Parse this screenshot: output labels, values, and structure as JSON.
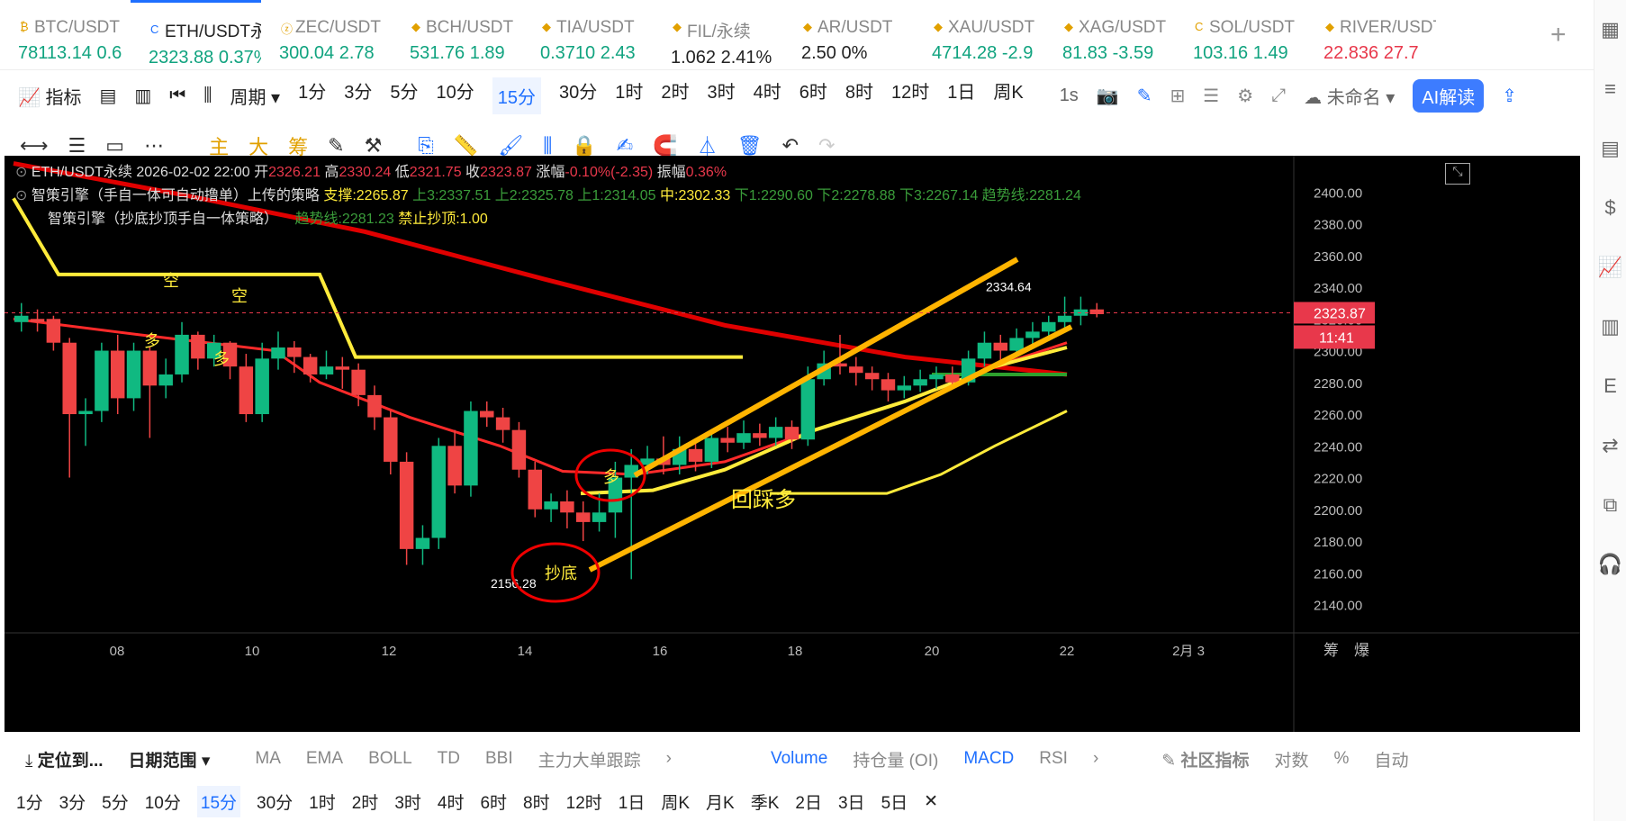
{
  "tickers": [
    {
      "symbol": "BTC/USDT",
      "price": "78113.14",
      "change": "0.6",
      "dir": "up",
      "icon": "₿"
    },
    {
      "symbol": "ETH/USDT永续",
      "price": "2323.88",
      "change": "0.37%",
      "dir": "up",
      "icon": "C",
      "active": true
    },
    {
      "symbol": "ZEC/USDT",
      "price": "300.04",
      "change": "2.78",
      "dir": "up",
      "icon": "ⓩ"
    },
    {
      "symbol": "BCH/USDT",
      "price": "531.76",
      "change": "1.89",
      "dir": "up",
      "icon": "◆"
    },
    {
      "symbol": "TIA/USDT",
      "price": "0.3710",
      "change": "2.43",
      "dir": "up",
      "icon": "◆"
    },
    {
      "symbol": "FIL/永续",
      "price": "1.062",
      "change": "2.41%",
      "dir": "neu",
      "icon": "◆"
    },
    {
      "symbol": "AR/USDT",
      "price": "2.50",
      "change": "0%",
      "dir": "neu",
      "icon": "◆"
    },
    {
      "symbol": "XAU/USDT",
      "price": "4714.28",
      "change": "-2.9",
      "dir": "up",
      "icon": "◆"
    },
    {
      "symbol": "XAG/USDT",
      "price": "81.83",
      "change": "-3.59",
      "dir": "up",
      "icon": "◆"
    },
    {
      "symbol": "SOL/USDT",
      "price": "103.16",
      "change": "1.49",
      "dir": "up",
      "icon": "C"
    },
    {
      "symbol": "RIVER/USDT",
      "price": "22.836",
      "change": "27.7",
      "dir": "dn",
      "icon": "◆"
    }
  ],
  "toolbar1": {
    "indicator": "指标",
    "period": "周期",
    "intervals": [
      "1分",
      "3分",
      "5分",
      "10分",
      "15分",
      "30分",
      "1时",
      "2时",
      "3时",
      "4时",
      "6时",
      "8时",
      "12时",
      "1日",
      "周K"
    ],
    "selected": "15分",
    "realtime": "1s",
    "unnamed": "未命名",
    "ai": "AI解读"
  },
  "toolbar2": {
    "main": "主",
    "big": "大",
    "chip": "筹"
  },
  "chart_header": {
    "line1_symbol": "ETH/USDT永续",
    "line1_time": "2026-02-02 22:00",
    "open_label": "开",
    "open": "2326.21",
    "high_label": "高",
    "high": "2330.24",
    "low_label": "低",
    "low": "2321.75",
    "close_label": "收",
    "close": "2323.87",
    "chg_label": "涨幅",
    "chg": "-0.10%(-2.35)",
    "amp_label": "振幅",
    "amp": "0.36%",
    "line2": "智策引擎（手自一体可自动撸单）上传的策略",
    "support": "支撑:2265.87",
    "up3": "上3:2337.51",
    "up2": "上2:2325.78",
    "up1": "上1:2314.05",
    "mid": "中:2302.33",
    "down1": "下1:2290.60",
    "down2": "下2:2278.88",
    "down3": "下3:2267.14",
    "trend2": "趋势线:2281.24",
    "line3": "智策引擎（抄底抄顶手自一体策略）",
    "trend3": "趋势线:2281.23",
    "forbid": "禁止抄顶:1.00"
  },
  "chart_data": {
    "type": "candlestick",
    "y_ticks": [
      "2400.00",
      "2380.00",
      "2360.00",
      "2340.00",
      "2320.00",
      "2300.00",
      "2280.00",
      "2260.00",
      "2240.00",
      "2220.00",
      "2200.00",
      "2180.00",
      "2160.00",
      "2140.00"
    ],
    "ylim": [
      2125,
      2420
    ],
    "x_ticks": [
      "08",
      "10",
      "12",
      "14",
      "16",
      "18",
      "20",
      "22",
      "2月 3"
    ],
    "last_price": "2323.87",
    "countdown": "11:41",
    "high_mark": "2334.64",
    "low_mark": "2156.28",
    "annotations": [
      "空",
      "空",
      "多",
      "多",
      "多",
      "抄底",
      "回踩多"
    ],
    "candles": [
      [
        2318,
        2322,
        2330,
        2312
      ],
      [
        2320,
        2318,
        2326,
        2312
      ],
      [
        2320,
        2305,
        2322,
        2300
      ],
      [
        2305,
        2260,
        2308,
        2220
      ],
      [
        2260,
        2262,
        2270,
        2240
      ],
      [
        2262,
        2300,
        2305,
        2255
      ],
      [
        2300,
        2270,
        2310,
        2260
      ],
      [
        2270,
        2300,
        2305,
        2262
      ],
      [
        2300,
        2278,
        2302,
        2245
      ],
      [
        2278,
        2285,
        2295,
        2270
      ],
      [
        2285,
        2310,
        2318,
        2280
      ],
      [
        2310,
        2295,
        2312,
        2288
      ],
      [
        2295,
        2305,
        2310,
        2290
      ],
      [
        2305,
        2290,
        2306,
        2282
      ],
      [
        2290,
        2260,
        2298,
        2255
      ],
      [
        2260,
        2295,
        2305,
        2255
      ],
      [
        2295,
        2302,
        2312,
        2288
      ],
      [
        2302,
        2296,
        2306,
        2286
      ],
      [
        2296,
        2285,
        2298,
        2280
      ],
      [
        2285,
        2290,
        2300,
        2282
      ],
      [
        2290,
        2288,
        2296,
        2276
      ],
      [
        2288,
        2272,
        2292,
        2265
      ],
      [
        2272,
        2258,
        2278,
        2250
      ],
      [
        2258,
        2230,
        2262,
        2222
      ],
      [
        2230,
        2175,
        2236,
        2165
      ],
      [
        2175,
        2182,
        2190,
        2165
      ],
      [
        2182,
        2240,
        2245,
        2175
      ],
      [
        2240,
        2215,
        2250,
        2210
      ],
      [
        2215,
        2262,
        2268,
        2208
      ],
      [
        2262,
        2258,
        2268,
        2252
      ],
      [
        2258,
        2250,
        2264,
        2242
      ],
      [
        2250,
        2225,
        2255,
        2220
      ],
      [
        2225,
        2200,
        2230,
        2195
      ],
      [
        2200,
        2205,
        2210,
        2192
      ],
      [
        2205,
        2198,
        2212,
        2188
      ],
      [
        2198,
        2192,
        2205,
        2180
      ],
      [
        2192,
        2198,
        2210,
        2186
      ],
      [
        2198,
        2220,
        2230,
        2182
      ],
      [
        2220,
        2228,
        2238,
        2156
      ],
      [
        2228,
        2232,
        2240,
        2222
      ],
      [
        2232,
        2228,
        2246,
        2222
      ],
      [
        2228,
        2238,
        2246,
        2222
      ],
      [
        2238,
        2230,
        2244,
        2224
      ],
      [
        2230,
        2245,
        2250,
        2226
      ],
      [
        2245,
        2242,
        2252,
        2236
      ],
      [
        2242,
        2248,
        2256,
        2238
      ],
      [
        2248,
        2245,
        2254,
        2240
      ],
      [
        2245,
        2252,
        2258,
        2240
      ],
      [
        2252,
        2244,
        2256,
        2238
      ],
      [
        2244,
        2282,
        2290,
        2240
      ],
      [
        2282,
        2292,
        2300,
        2278
      ],
      [
        2292,
        2290,
        2310,
        2285
      ],
      [
        2290,
        2286,
        2296,
        2278
      ],
      [
        2286,
        2282,
        2290,
        2275
      ],
      [
        2282,
        2275,
        2286,
        2268
      ],
      [
        2275,
        2278,
        2284,
        2270
      ],
      [
        2278,
        2282,
        2288,
        2274
      ],
      [
        2282,
        2285,
        2290,
        2276
      ],
      [
        2285,
        2280,
        2290,
        2276
      ],
      [
        2280,
        2295,
        2300,
        2278
      ],
      [
        2295,
        2305,
        2312,
        2290
      ],
      [
        2305,
        2300,
        2310,
        2294
      ],
      [
        2300,
        2308,
        2314,
        2296
      ],
      [
        2308,
        2312,
        2318,
        2304
      ],
      [
        2312,
        2318,
        2322,
        2306
      ],
      [
        2318,
        2322,
        2334,
        2312
      ],
      [
        2322,
        2326,
        2334,
        2316
      ],
      [
        2326,
        2323,
        2330,
        2321
      ]
    ]
  },
  "bottom_bar": {
    "locate": "定位到...",
    "date_range": "日期范围",
    "tabs": [
      "MA",
      "EMA",
      "BOLL",
      "TD",
      "BBI",
      "主力大单跟踪"
    ],
    "sub_tabs": [
      "Volume",
      "持仓量 (OI)",
      "MACD",
      "RSI"
    ],
    "community": "社区指标",
    "log": "对数",
    "pct": "%",
    "auto": "自动"
  },
  "period_bar": [
    "1分",
    "3分",
    "5分",
    "10分",
    "15分",
    "30分",
    "1时",
    "2时",
    "3时",
    "4时",
    "6时",
    "8时",
    "12时",
    "1日",
    "周K",
    "月K",
    "季K",
    "2日",
    "3日",
    "5日"
  ],
  "period_selected": "15分",
  "axis_right_labels": [
    "筹",
    "爆"
  ]
}
